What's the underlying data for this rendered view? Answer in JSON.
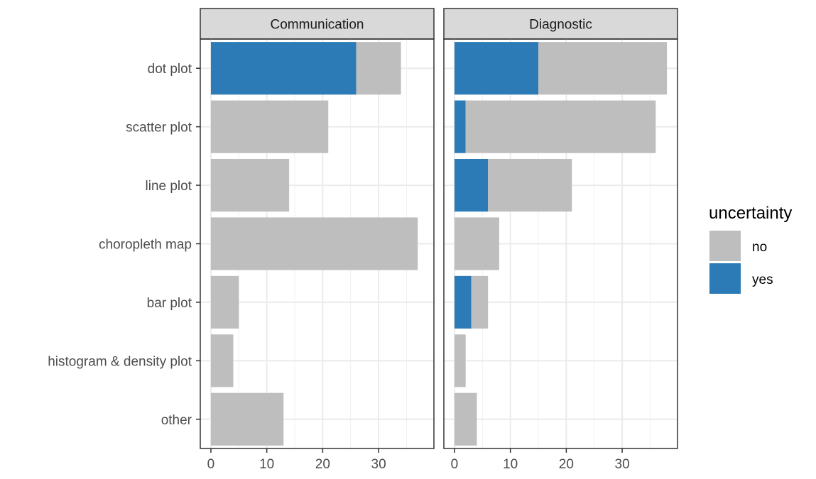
{
  "chart_data": {
    "type": "bar",
    "orientation": "horizontal",
    "stacked": true,
    "categories": [
      "dot plot",
      "scatter plot",
      "line plot",
      "choropleth map",
      "bar plot",
      "histogram & density plot",
      "other"
    ],
    "x_ticks": [
      0,
      10,
      20,
      30
    ],
    "xlim": [
      -1.9,
      39.9
    ],
    "grid": true,
    "legend": {
      "title": "uncertainty",
      "position": "right",
      "entries": [
        {
          "label": "no",
          "color": "#bebebe"
        },
        {
          "label": "yes",
          "color": "#2c7bb6"
        }
      ]
    },
    "panels": [
      {
        "title": "Communication",
        "series": [
          {
            "name": "yes",
            "values": [
              26,
              0,
              0,
              0,
              0,
              0,
              0
            ]
          },
          {
            "name": "no",
            "values": [
              8,
              21,
              14,
              37,
              5,
              4,
              13
            ]
          }
        ]
      },
      {
        "title": "Diagnostic",
        "series": [
          {
            "name": "yes",
            "values": [
              15,
              2,
              6,
              0,
              3,
              0,
              0
            ]
          },
          {
            "name": "no",
            "values": [
              23,
              34,
              15,
              8,
              3,
              2,
              4
            ]
          }
        ]
      }
    ]
  }
}
